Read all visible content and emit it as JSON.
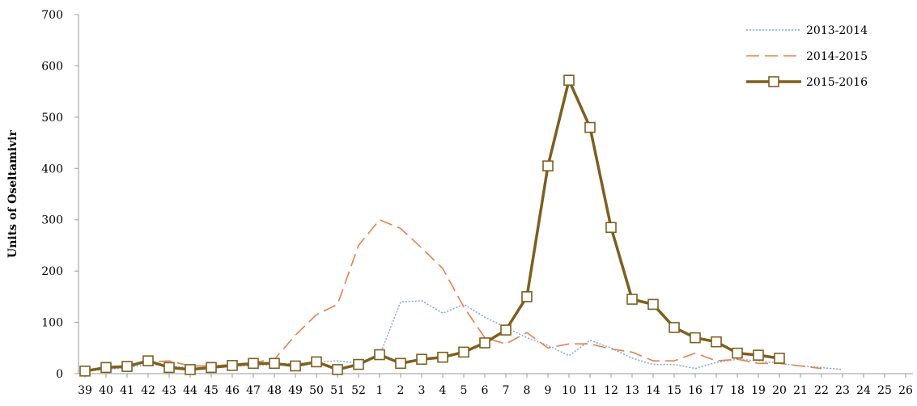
{
  "chart_data": {
    "type": "line",
    "title": "",
    "xlabel": "",
    "ylabel": "Units of Oseltamivir",
    "ylim": [
      0,
      700
    ],
    "yticks": [
      0,
      100,
      200,
      300,
      400,
      500,
      600,
      700
    ],
    "categories": [
      "39",
      "40",
      "41",
      "42",
      "43",
      "44",
      "45",
      "46",
      "47",
      "48",
      "49",
      "50",
      "51",
      "52",
      "1",
      "2",
      "3",
      "4",
      "5",
      "6",
      "7",
      "8",
      "9",
      "10",
      "11",
      "12",
      "13",
      "14",
      "15",
      "16",
      "17",
      "18",
      "19",
      "20",
      "21",
      "22",
      "23",
      "24",
      "25",
      "26"
    ],
    "grid": false,
    "legend_position": "top-right",
    "series": [
      {
        "name": "2013-2014",
        "color": "#7da7d9",
        "style": "dotted",
        "marker": "none",
        "values": [
          5,
          8,
          12,
          18,
          15,
          12,
          12,
          15,
          15,
          18,
          20,
          22,
          25,
          20,
          35,
          140,
          142,
          118,
          135,
          110,
          90,
          70,
          55,
          35,
          65,
          50,
          30,
          18,
          18,
          10,
          22,
          28,
          25,
          20,
          15,
          12,
          8,
          null,
          null,
          null
        ]
      },
      {
        "name": "2014-2015",
        "color": "#e8804a",
        "style": "dashed",
        "marker": "none",
        "values": [
          5,
          12,
          18,
          22,
          25,
          15,
          15,
          18,
          22,
          28,
          75,
          115,
          135,
          250,
          300,
          283,
          245,
          205,
          130,
          70,
          58,
          80,
          50,
          58,
          58,
          48,
          42,
          25,
          25,
          40,
          25,
          28,
          20,
          20,
          15,
          10,
          null,
          null,
          null,
          null
        ]
      },
      {
        "name": "2015-2016",
        "color": "#7d5f1f",
        "style": "solid",
        "marker": "square",
        "values": [
          5,
          12,
          14,
          25,
          12,
          8,
          12,
          16,
          20,
          20,
          15,
          23,
          8,
          18,
          37,
          20,
          28,
          32,
          42,
          60,
          85,
          150,
          405,
          572,
          480,
          285,
          145,
          135,
          90,
          70,
          62,
          40,
          36,
          30,
          null,
          null,
          null,
          null,
          null,
          null
        ]
      }
    ]
  }
}
